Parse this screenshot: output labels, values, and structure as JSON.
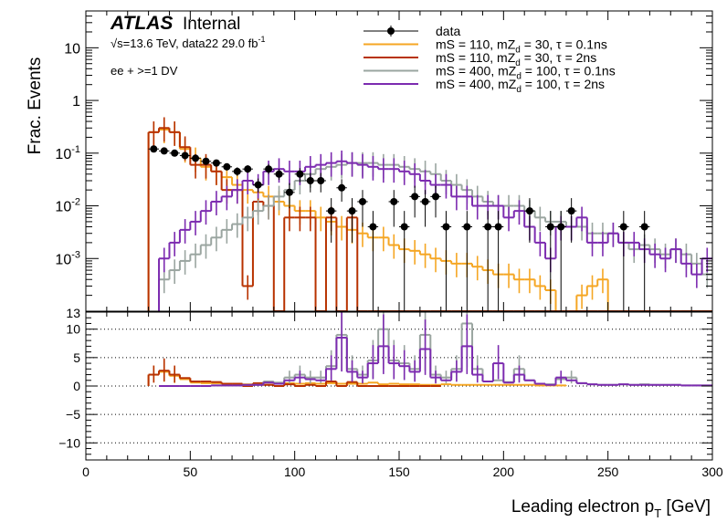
{
  "colors": {
    "data": "#000000",
    "mS110_mZd30_tau0p1": "#f5a623",
    "mS110_mZd30_tau2": "#b83200",
    "mS400_mZd100_tau0p1": "#9aa5a0",
    "mS400_mZd100_tau2": "#7c2bb0"
  },
  "labels": {
    "atlas": "ATLAS",
    "internal": "Internal",
    "energy_pre": "√s=13.6 TeV, data22 29.0 fb",
    "energy_sup": "-1",
    "selection": "ee + >=1 DV",
    "ylabel_top": "Frac. Events",
    "xlabel_main": "Leading electron p",
    "xlabel_sub": "T",
    "xlabel_unit": " [GeV]"
  },
  "legend": [
    {
      "key": "data",
      "text": "data",
      "type": "marker"
    },
    {
      "key": "mS110_mZd30_tau0p1",
      "pre": "mS = 110, mZ",
      "sub": "d",
      "post": " = 30, τ = 0.1ns",
      "type": "line"
    },
    {
      "key": "mS110_mZd30_tau2",
      "pre": "mS = 110, mZ",
      "sub": "d",
      "post": " = 30, τ = 2ns",
      "type": "line"
    },
    {
      "key": "mS400_mZd100_tau0p1",
      "pre": "mS = 400, mZ",
      "sub": "d",
      "post": " = 100, τ = 0.1ns",
      "type": "line"
    },
    {
      "key": "mS400_mZd100_tau2",
      "pre": "mS = 400, mZ",
      "sub": "d",
      "post": " = 100, τ = 2ns",
      "type": "line"
    }
  ],
  "chart_data": [
    {
      "type": "line",
      "title": "",
      "xlabel": "Leading electron pT [GeV]",
      "ylabel": "Frac. Events",
      "xlim": [
        0,
        300
      ],
      "ylim": [
        0.0001,
        50
      ],
      "log_y": true,
      "bin_width": 5,
      "x_ticks": [
        0,
        50,
        100,
        150,
        200,
        250,
        300
      ],
      "y_ticks": [
        {
          "v": 0.001,
          "base": "10",
          "exp": "-3"
        },
        {
          "v": 0.01,
          "base": "10",
          "exp": "-2"
        },
        {
          "v": 0.1,
          "base": "10",
          "exp": "-1"
        },
        {
          "v": 1,
          "base": "1",
          "exp": ""
        },
        {
          "v": 10,
          "base": "10",
          "exp": ""
        }
      ],
      "data_points": {
        "x": [
          32.5,
          37.5,
          42.5,
          47.5,
          52.5,
          57.5,
          62.5,
          67.5,
          72.5,
          77.5,
          82.5,
          87.5,
          92.5,
          97.5,
          102.5,
          107.5,
          112.5,
          117.5,
          122.5,
          127.5,
          132.5,
          137.5,
          147.5,
          152.5,
          157.5,
          162.5,
          167.5,
          172.5,
          182.5,
          192.5,
          197.5,
          212.5,
          222.5,
          227.5,
          232.5,
          257.5,
          267.5
        ],
        "y": [
          0.12,
          0.11,
          0.1,
          0.09,
          0.08,
          0.07,
          0.065,
          0.055,
          0.045,
          0.05,
          0.025,
          0.05,
          0.04,
          0.018,
          0.04,
          0.03,
          0.03,
          0.008,
          0.022,
          0.008,
          0.012,
          0.004,
          0.012,
          0.004,
          0.015,
          0.012,
          0.015,
          0.004,
          0.004,
          0.004,
          0.004,
          0.008,
          0.004,
          0.004,
          0.008,
          0.004,
          0.004
        ],
        "yerr_low": [
          0.01,
          0.01,
          0.01,
          0.01,
          0.01,
          0.009,
          0.009,
          0.008,
          0.008,
          0.008,
          0.007,
          0.01,
          0.009,
          0.009,
          0.012,
          0.012,
          0.012,
          0.006,
          0.01,
          0.006,
          0.008,
          0.0039,
          0.008,
          0.0039,
          0.009,
          0.008,
          0.009,
          0.0039,
          0.0039,
          0.0039,
          0.0039,
          0.006,
          0.0039,
          0.0039,
          0.006,
          0.0039,
          0.0039
        ],
        "yerr_high": [
          0.012,
          0.012,
          0.012,
          0.012,
          0.011,
          0.01,
          0.01,
          0.009,
          0.009,
          0.009,
          0.008,
          0.012,
          0.01,
          0.009,
          0.012,
          0.012,
          0.012,
          0.006,
          0.01,
          0.006,
          0.008,
          0.004,
          0.008,
          0.004,
          0.009,
          0.008,
          0.009,
          0.004,
          0.004,
          0.004,
          0.004,
          0.006,
          0.004,
          0.004,
          0.006,
          0.004,
          0.004
        ]
      },
      "series": [
        {
          "key": "mS110_mZd30_tau0p1",
          "x_start": 30,
          "values": [
            0.25,
            0.28,
            0.25,
            0.12,
            0.08,
            0.055,
            0.045,
            0.035,
            0.025,
            0.02,
            0.018,
            0.015,
            0.012,
            0.01,
            0.008,
            0.008,
            0.006,
            0.005,
            0.004,
            0.0035,
            0.003,
            0.0025,
            0.0025,
            0.0018,
            0.0015,
            0.0014,
            0.0012,
            0.001,
            0.0009,
            0.0008,
            0.0008,
            0.0007,
            0.0006,
            0.0005,
            0.0005,
            0.0004,
            0.0004,
            0.0003,
            0.00025,
            0.0001,
            0.0001,
            0.0002,
            0.0003,
            0.0004,
            0.0001,
            0.0001,
            0.0001,
            0.0001,
            0.0001,
            0.0001,
            0.0001,
            0.0001,
            0.0001,
            0.0001,
            0.0001,
            0.0003,
            0.0002
          ]
        },
        {
          "key": "mS110_mZd30_tau2",
          "x_start": 30,
          "values": [
            0.25,
            0.3,
            0.25,
            0.13,
            0.06,
            0.06,
            0.045,
            0.02,
            0.02,
            0.0003,
            0.012,
            0.01,
            0.0001,
            0.006,
            0.006,
            0.006,
            0.0001,
            0.006,
            0.0001,
            0.006,
            0.0001,
            0.0001,
            0.0001,
            0.0001,
            0.0001,
            0.0001,
            0.0001,
            0.0001,
            0.0001,
            0.0001,
            0.0001,
            0.0001,
            0.0001,
            0.0001,
            0.0001,
            0.0001,
            0.0001,
            0.0001,
            0.0001,
            0.0001,
            0.0001,
            0.0001,
            0.0001,
            0.0001,
            0.0001,
            0.0001,
            0.0001,
            0.0001,
            0.0001,
            0.0001,
            0.0001,
            0.0001,
            0.0001,
            0.0001,
            0.0001,
            0.0001,
            0.0001
          ]
        },
        {
          "key": "mS400_mZd100_tau0p1",
          "x_start": 35,
          "values": [
            0.0004,
            0.0006,
            0.0009,
            0.0012,
            0.0018,
            0.0025,
            0.0035,
            0.0045,
            0.006,
            0.008,
            0.01,
            0.015,
            0.02,
            0.03,
            0.04,
            0.05,
            0.055,
            0.06,
            0.065,
            0.065,
            0.065,
            0.06,
            0.06,
            0.055,
            0.05,
            0.045,
            0.04,
            0.03,
            0.025,
            0.02,
            0.015,
            0.012,
            0.01,
            0.01,
            0.01,
            0.008,
            0.006,
            0.005,
            0.005,
            0.004,
            0.004,
            0.003,
            0.003,
            0.003,
            0.002,
            0.0015,
            0.0018,
            0.0015,
            0.0012,
            0.0015,
            0.0012,
            0.0008,
            0.0005
          ]
        },
        {
          "key": "mS400_mZd100_tau2",
          "x_start": 35,
          "values": [
            0.001,
            0.002,
            0.0035,
            0.005,
            0.008,
            0.012,
            0.015,
            0.02,
            0.03,
            0.025,
            0.045,
            0.05,
            0.045,
            0.045,
            0.055,
            0.06,
            0.065,
            0.07,
            0.065,
            0.06,
            0.055,
            0.05,
            0.05,
            0.045,
            0.04,
            0.03,
            0.025,
            0.025,
            0.015,
            0.015,
            0.01,
            0.01,
            0.01,
            0.006,
            0.008,
            0.004,
            0.002,
            0.001,
            0.004,
            0.004,
            0.006,
            0.002,
            0.002,
            0.003,
            0.002,
            0.002,
            0.0015,
            0.0012,
            0.001,
            0.0015,
            0.0008,
            0.0005,
            0.001
          ]
        }
      ]
    },
    {
      "type": "line",
      "title": "",
      "xlabel": "Leading electron pT [GeV]",
      "ylabel": "",
      "xlim": [
        0,
        300
      ],
      "ylim": [
        -13,
        13
      ],
      "log_y": false,
      "bin_width": 5,
      "x_ticks": [
        0,
        50,
        100,
        150,
        200,
        250,
        300
      ],
      "y_ticks": [
        -10,
        -5,
        0,
        5,
        10
      ],
      "y_top_label": "13",
      "gridlines_dotted": [
        -10,
        -5,
        0,
        5,
        10
      ],
      "series": [
        {
          "key": "mS110_mZd30_tau0p1",
          "x_start": 30,
          "values": [
            2.0,
            2.5,
            1.8,
            1.2,
            0.6,
            0.5,
            0.5,
            0.4,
            0.4,
            0.3,
            0.3,
            0.6,
            0.4,
            0.5,
            0.4,
            0.5,
            0.4,
            0.5,
            0.4,
            0.4,
            0.4,
            0.6,
            0.3,
            0.4,
            0.3,
            0.3,
            0.2,
            0.2,
            0.3,
            0.2,
            0.2,
            0.2,
            0.2,
            0.2,
            0.2,
            0.2,
            0.2,
            0.1,
            0.1,
            0.1
          ]
        },
        {
          "key": "mS110_mZd30_tau2",
          "x_start": 30,
          "values": [
            2.0,
            2.7,
            2.0,
            1.4,
            0.8,
            0.8,
            0.7,
            0.4,
            0.4,
            0.0,
            0.5,
            0.2,
            0.0,
            0.3,
            0.0,
            0.2,
            0.0,
            0.8,
            0.0,
            0.7,
            0.0,
            0.0,
            0.0,
            0.0,
            0.0,
            0.0,
            0.0,
            0.0
          ]
        },
        {
          "key": "mS400_mZd100_tau0p1",
          "x_start": 35,
          "values": [
            0.0,
            0.0,
            0.0,
            0.0,
            0.0,
            0.1,
            0.1,
            0.1,
            0.2,
            0.2,
            0.8,
            0.6,
            1.5,
            2.0,
            1.5,
            1.5,
            3.5,
            9.0,
            3.0,
            2.0,
            4.5,
            10.0,
            4.5,
            4.0,
            3.0,
            9.0,
            2.0,
            1.5,
            3.0,
            11.0,
            3.0,
            0.8,
            1.0,
            0.7,
            3.0,
            1.0,
            0.4,
            0.3,
            1.2,
            1.5,
            0.5,
            0.3,
            0.2,
            0.2,
            0.3,
            0.2,
            0.3,
            0.2,
            0.2,
            0.2,
            0.1,
            0.1,
            0.1
          ]
        },
        {
          "key": "mS400_mZd100_tau2",
          "x_start": 35,
          "values": [
            0.0,
            0.0,
            0.0,
            0.0,
            0.0,
            0.1,
            0.1,
            0.1,
            0.2,
            0.2,
            0.6,
            0.4,
            1.0,
            1.5,
            1.2,
            1.0,
            3.0,
            8.5,
            2.5,
            1.5,
            4.0,
            7.0,
            4.0,
            3.5,
            2.5,
            6.5,
            1.5,
            1.0,
            2.5,
            7.0,
            2.0,
            0.8,
            4.0,
            0.6,
            2.0,
            1.0,
            0.4,
            0.2,
            1.5,
            1.0,
            0.5,
            0.3,
            0.2,
            0.2,
            0.3,
            0.2,
            0.2,
            0.2,
            0.2,
            0.2,
            0.1,
            0.1,
            0.1
          ]
        }
      ]
    }
  ]
}
